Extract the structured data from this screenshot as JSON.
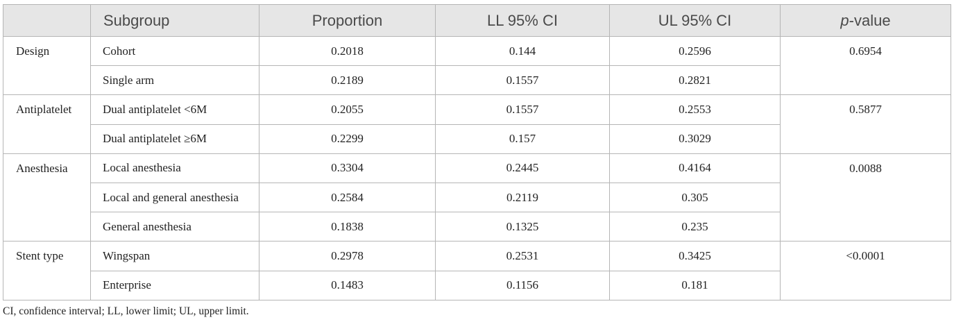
{
  "table": {
    "headers": [
      "Subgroup",
      "Proportion",
      "LL 95% CI",
      "UL 95% CI",
      [
        "p",
        "-value"
      ]
    ],
    "groups": [
      {
        "name": "Design",
        "p_value": "0.6954",
        "rows": [
          [
            "Cohort",
            "0.2018",
            "0.144",
            "0.2596"
          ],
          [
            "Single arm",
            "0.2189",
            "0.1557",
            "0.2821"
          ]
        ]
      },
      {
        "name": "Antiplatelet",
        "p_value": "0.5877",
        "rows": [
          [
            "Dual antiplatelet <6M",
            "0.2055",
            "0.1557",
            "0.2553"
          ],
          [
            "Dual antiplatelet ≥6M",
            "0.2299",
            "0.157",
            "0.3029"
          ]
        ]
      },
      {
        "name": "Anesthesia",
        "p_value": "0.0088",
        "rows": [
          [
            "Local anesthesia",
            "0.3304",
            "0.2445",
            "0.4164"
          ],
          [
            "Local and general anesthesia",
            "0.2584",
            "0.2119",
            "0.305"
          ],
          [
            "General anesthesia",
            "0.1838",
            "0.1325",
            "0.235"
          ]
        ]
      },
      {
        "name": "Stent type",
        "p_value": "<0.0001",
        "rows": [
          [
            "Wingspan",
            "0.2978",
            "0.2531",
            "0.3425"
          ],
          [
            "Enterprise",
            "0.1483",
            "0.1156",
            "0.181"
          ]
        ]
      }
    ]
  },
  "footnote": "CI, confidence interval; LL, lower limit; UL, upper limit."
}
